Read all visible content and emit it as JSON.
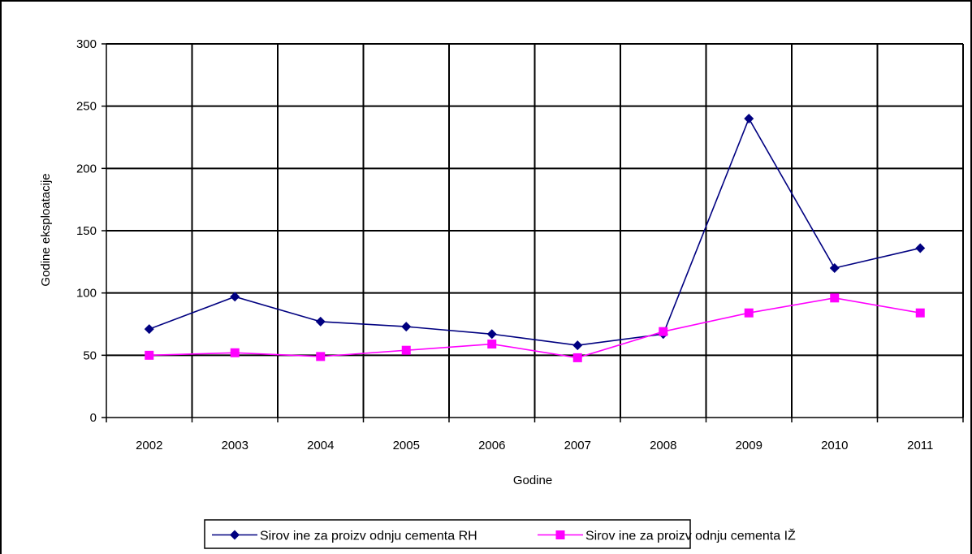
{
  "chart_data": {
    "type": "line",
    "title": "",
    "xlabel": "Godine",
    "ylabel": "Godine eksploatacije",
    "categories": [
      "2002",
      "2003",
      "2004",
      "2005",
      "2006",
      "2007",
      "2008",
      "2009",
      "2010",
      "2011"
    ],
    "ylim": [
      0,
      300
    ],
    "yticks": [
      0,
      50,
      100,
      150,
      200,
      250,
      300
    ],
    "grid": true,
    "legend_position": "bottom",
    "series": [
      {
        "name": "Sirov ine za proizv odnju cementa RH",
        "color": "#000080",
        "marker": "diamond",
        "values": [
          71,
          97,
          77,
          73,
          67,
          58,
          67,
          240,
          120,
          136
        ]
      },
      {
        "name": "Sirov ine za proizv odnju cementa IŽ",
        "color": "#ff00ff",
        "marker": "square",
        "values": [
          50,
          52,
          49,
          54,
          59,
          48,
          69,
          84,
          96,
          84
        ]
      }
    ]
  }
}
